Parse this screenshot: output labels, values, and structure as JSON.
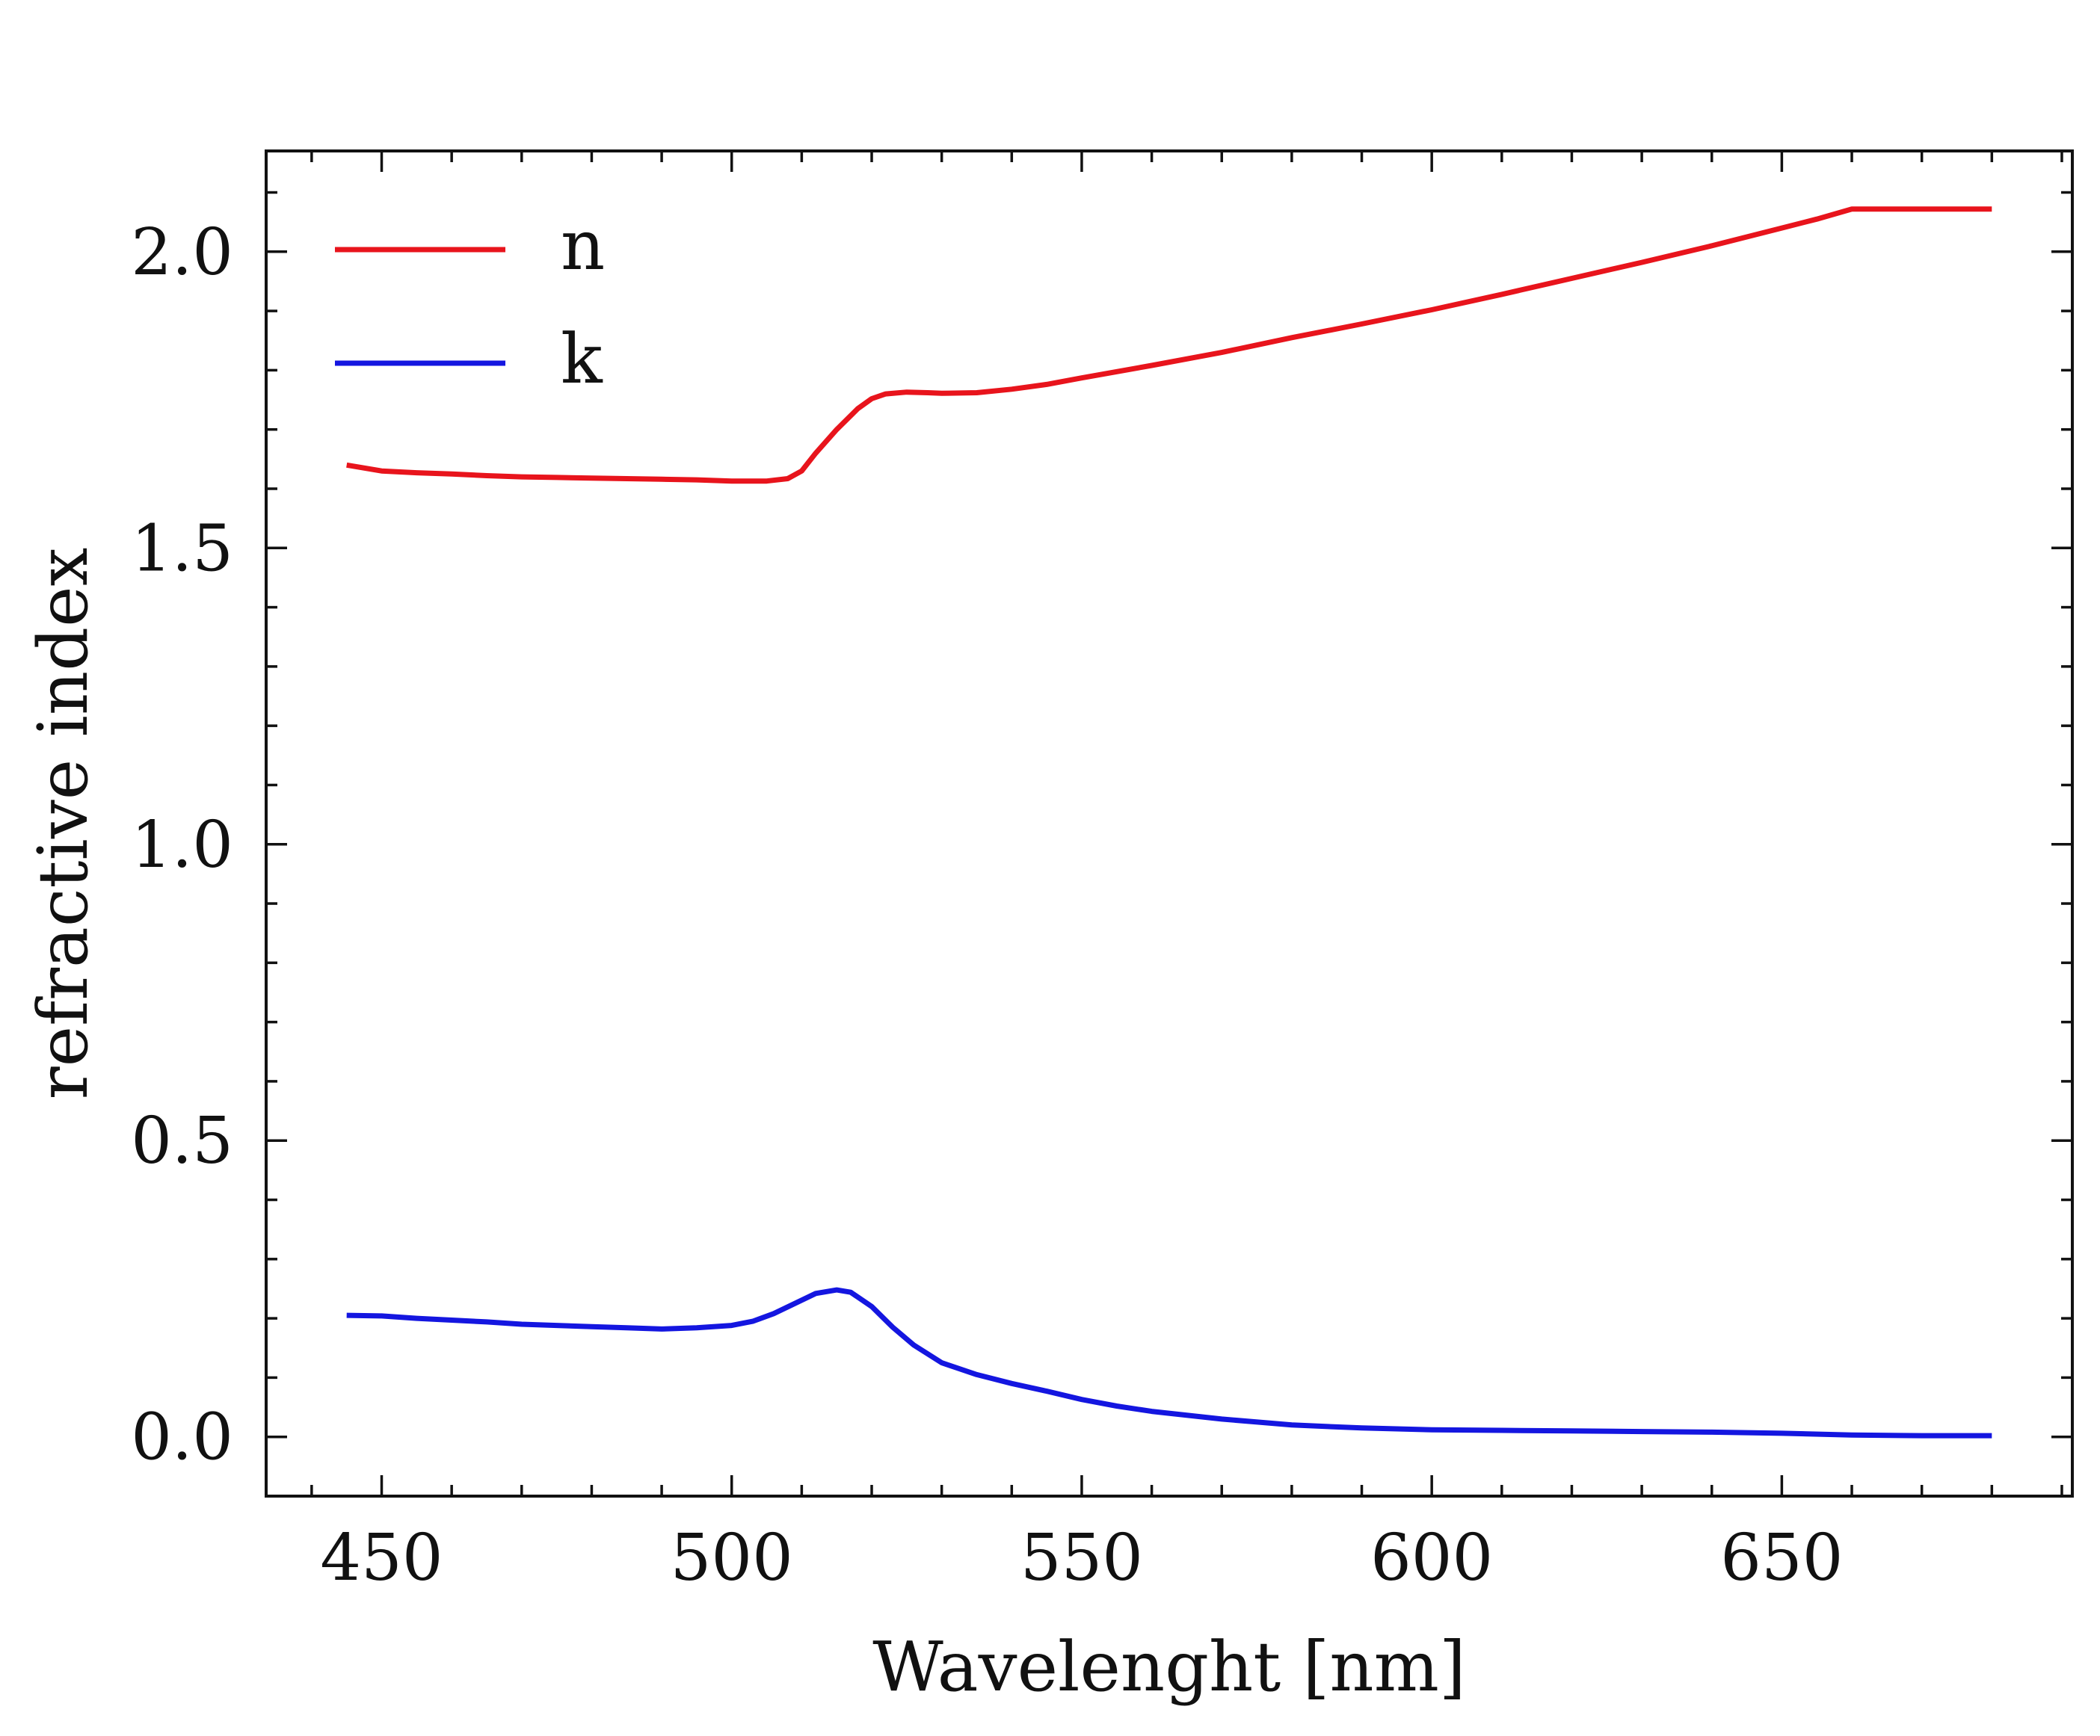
{
  "chart_data": {
    "type": "line",
    "title": "",
    "xlabel": "Wavelenght [nm]",
    "ylabel": "refractive index",
    "xlim": [
      433.5,
      691.5
    ],
    "ylim": [
      -0.1,
      2.17
    ],
    "xticks": [
      450,
      500,
      550,
      600,
      650
    ],
    "xtick_labels": [
      "450",
      "500",
      "550",
      "600",
      "650"
    ],
    "yticks": [
      0.0,
      0.5,
      1.0,
      1.5,
      2.0
    ],
    "ytick_labels": [
      "0.0",
      "0.5",
      "1.0",
      "1.5",
      "2.0"
    ],
    "x_minor_step": 10,
    "y_minor_step": 0.1,
    "grid": false,
    "legend_position": "top-left",
    "series": [
      {
        "name": "n",
        "color": "#e8141c",
        "x": [
          445,
          450,
          455,
          460,
          465,
          470,
          475,
          480,
          485,
          490,
          495,
          500,
          505,
          508,
          510,
          512,
          515,
          518,
          520,
          522,
          525,
          528,
          530,
          535,
          540,
          545,
          550,
          560,
          570,
          580,
          590,
          600,
          610,
          620,
          630,
          640,
          650,
          655,
          660,
          665,
          670,
          675,
          680
        ],
        "y": [
          1.64,
          1.63,
          1.627,
          1.625,
          1.622,
          1.62,
          1.619,
          1.618,
          1.617,
          1.616,
          1.615,
          1.613,
          1.613,
          1.617,
          1.63,
          1.66,
          1.7,
          1.735,
          1.752,
          1.76,
          1.763,
          1.762,
          1.761,
          1.762,
          1.768,
          1.776,
          1.787,
          1.808,
          1.83,
          1.855,
          1.878,
          1.902,
          1.928,
          1.955,
          1.982,
          2.01,
          2.04,
          2.055,
          2.072,
          2.072,
          2.072,
          2.072,
          2.072
        ]
      },
      {
        "name": "k",
        "color": "#1416e0",
        "x": [
          445,
          450,
          455,
          460,
          465,
          470,
          475,
          480,
          485,
          490,
          495,
          500,
          503,
          506,
          509,
          512,
          515,
          517,
          520,
          523,
          526,
          530,
          535,
          540,
          545,
          550,
          555,
          560,
          570,
          580,
          590,
          600,
          610,
          620,
          630,
          640,
          650,
          660,
          670,
          680
        ],
        "y": [
          0.205,
          0.204,
          0.2,
          0.197,
          0.194,
          0.19,
          0.188,
          0.186,
          0.184,
          0.182,
          0.184,
          0.188,
          0.195,
          0.208,
          0.225,
          0.242,
          0.248,
          0.244,
          0.22,
          0.185,
          0.155,
          0.125,
          0.105,
          0.09,
          0.077,
          0.063,
          0.052,
          0.043,
          0.03,
          0.02,
          0.015,
          0.012,
          0.011,
          0.01,
          0.009,
          0.008,
          0.006,
          0.003,
          0.002,
          0.002
        ]
      }
    ]
  }
}
